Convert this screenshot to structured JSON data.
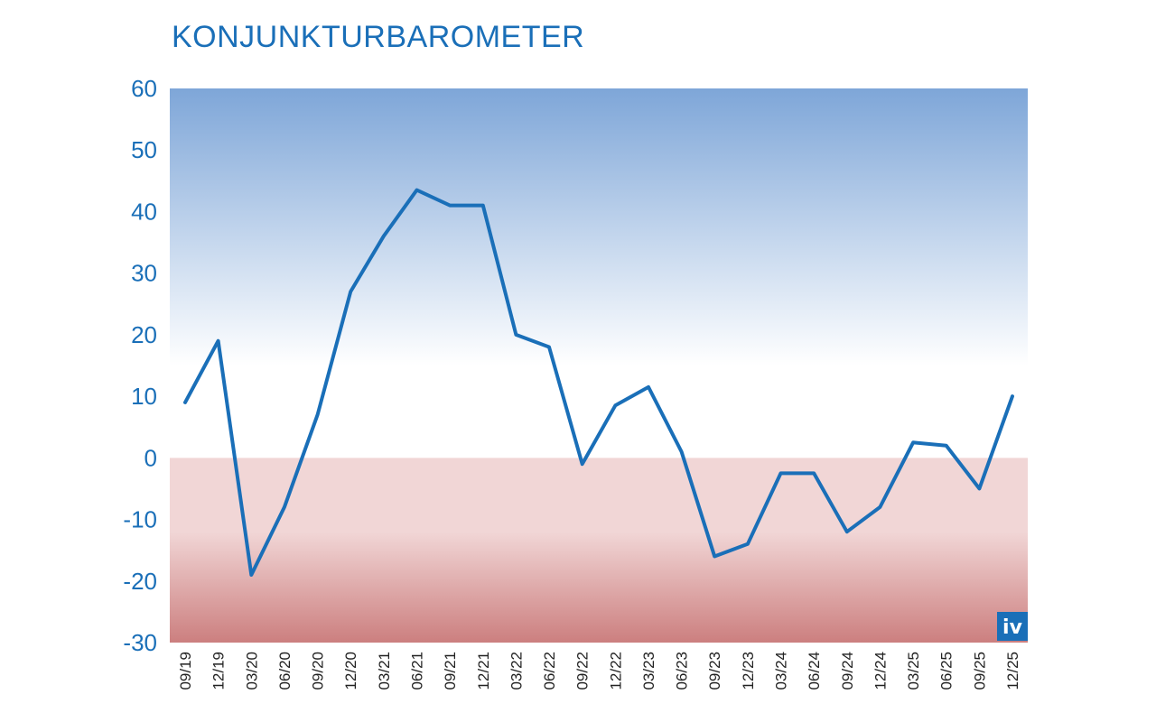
{
  "chart_data": {
    "type": "line",
    "title": "KONJUNKTURBAROMETER",
    "xlabel": "",
    "ylabel": "",
    "ylim": [
      -30,
      60
    ],
    "yticks": [
      60,
      50,
      40,
      30,
      20,
      10,
      0,
      -10,
      -20,
      -30
    ],
    "categories": [
      "09/19",
      "12/19",
      "03/20",
      "06/20",
      "09/20",
      "12/20",
      "03/21",
      "06/21",
      "09/21",
      "12/21",
      "03/22",
      "06/22",
      "09/22",
      "12/22",
      "03/23",
      "06/23",
      "09/23",
      "12/23",
      "03/24",
      "06/24",
      "09/24",
      "12/24",
      "03/25",
      "06/25",
      "09/25",
      "12/25"
    ],
    "series": [
      {
        "values": [
          9,
          19,
          -19,
          -8,
          7,
          27,
          36,
          43.5,
          41,
          41,
          20,
          18,
          -1,
          8.5,
          11.5,
          1,
          -16,
          -14,
          -2.5,
          -2.5,
          -12,
          -8,
          2.5,
          2,
          -5,
          10
        ],
        "color": "#1a6fb8"
      }
    ],
    "background": {
      "positive_top_color": "#7ea6d8",
      "positive_bottom_color": "#ffffff",
      "negative_top_color": "#f1d6d6",
      "negative_bottom_color": "#cc7f7f"
    },
    "grid": false,
    "legend": "none",
    "logo_badge": {
      "text": "iv",
      "color": "#1a6fb8",
      "placement": "bottom-right"
    }
  }
}
